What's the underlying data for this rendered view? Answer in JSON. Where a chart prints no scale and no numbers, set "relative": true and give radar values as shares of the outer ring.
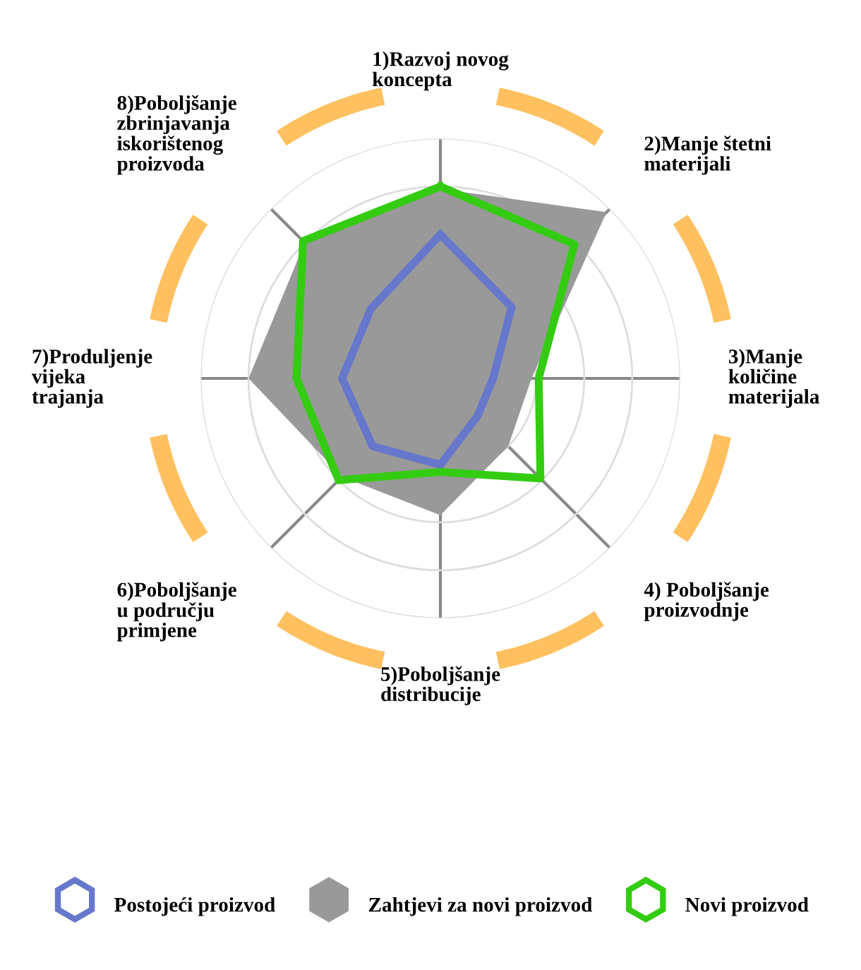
{
  "chart_data": {
    "type": "radar",
    "relative": true,
    "grid": true,
    "legend": "bottom",
    "categories": [
      "1)Razvoj novog koncepta",
      "2)Manje štetni materijali",
      "3)Manje količine materijala",
      "4) Poboljšanje proizvodnje",
      "5)Poboljšanje distribucije",
      "6)Poboljšanje u području primjene",
      "7)Produljenje vijeka trajanja",
      "8)Poboljšanje zbrinjavanja iskorištenog proizvoda"
    ],
    "series": [
      {
        "name": "Postojeći proizvod",
        "color": "#6677cc",
        "values": [
          0.6,
          0.42,
          0.22,
          0.22,
          0.36,
          0.4,
          0.41,
          0.41
        ]
      },
      {
        "name": "Zahtjevi za novi proizvod",
        "type": "area",
        "color": "#999999",
        "values": [
          0.79,
          0.98,
          0.38,
          0.4,
          0.57,
          0.58,
          0.8,
          0.8
        ]
      },
      {
        "name": "Novi proizvod",
        "color": "#33cc11",
        "values": [
          0.8,
          0.79,
          0.41,
          0.59,
          0.39,
          0.6,
          0.6,
          0.81
        ]
      }
    ]
  }
}
